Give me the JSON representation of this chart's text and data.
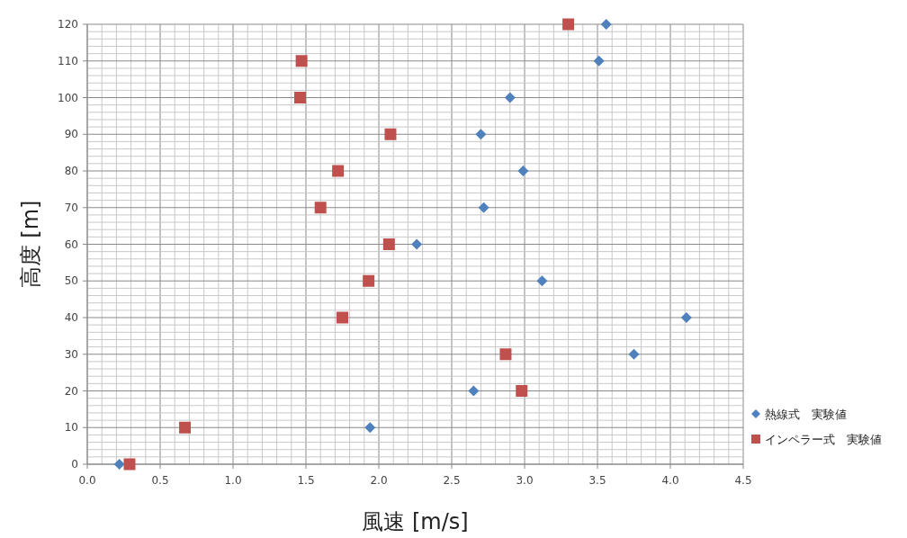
{
  "chart_data": {
    "type": "scatter",
    "xlabel": "風速 [m/s]",
    "ylabel": "高度 [m]",
    "xlim": [
      0,
      4.5
    ],
    "xticks": [
      {
        "value": 0,
        "label": "0.0"
      },
      {
        "value": 0.5,
        "label": "0.5"
      },
      {
        "value": 1,
        "label": "1.0"
      },
      {
        "value": 1.5,
        "label": "1.5"
      },
      {
        "value": 2,
        "label": "2.0"
      },
      {
        "value": 2.5,
        "label": "2.5"
      },
      {
        "value": 3,
        "label": "3.0"
      },
      {
        "value": 3.5,
        "label": "3.5"
      },
      {
        "value": 4,
        "label": "4.0"
      },
      {
        "value": 4.5,
        "label": "4.5"
      }
    ],
    "ylim": [
      0,
      120
    ],
    "yticks": [
      0,
      10,
      20,
      30,
      40,
      50,
      60,
      70,
      80,
      90,
      100,
      110,
      120
    ],
    "grid": true,
    "legend": "right",
    "series": [
      {
        "name": "熱線式　実験値",
        "color": "#4f81bd",
        "marker": "diamond",
        "x": [
          0.22,
          1.94,
          2.65,
          3.75,
          4.11,
          3.12,
          2.26,
          2.72,
          2.99,
          2.7,
          2.9,
          3.51,
          3.56
        ],
        "values": [
          0,
          10,
          20,
          30,
          40,
          50,
          60,
          70,
          80,
          90,
          100,
          110,
          120
        ]
      },
      {
        "name": "インペラー式　実験値",
        "color": "#c0504d",
        "marker": "square",
        "x": [
          0.29,
          0.67,
          2.98,
          2.87,
          1.75,
          1.93,
          2.07,
          1.6,
          1.72,
          2.08,
          1.46,
          1.47,
          3.3
        ],
        "values": [
          0,
          10,
          20,
          30,
          40,
          50,
          60,
          70,
          80,
          90,
          100,
          110,
          120
        ]
      }
    ]
  }
}
